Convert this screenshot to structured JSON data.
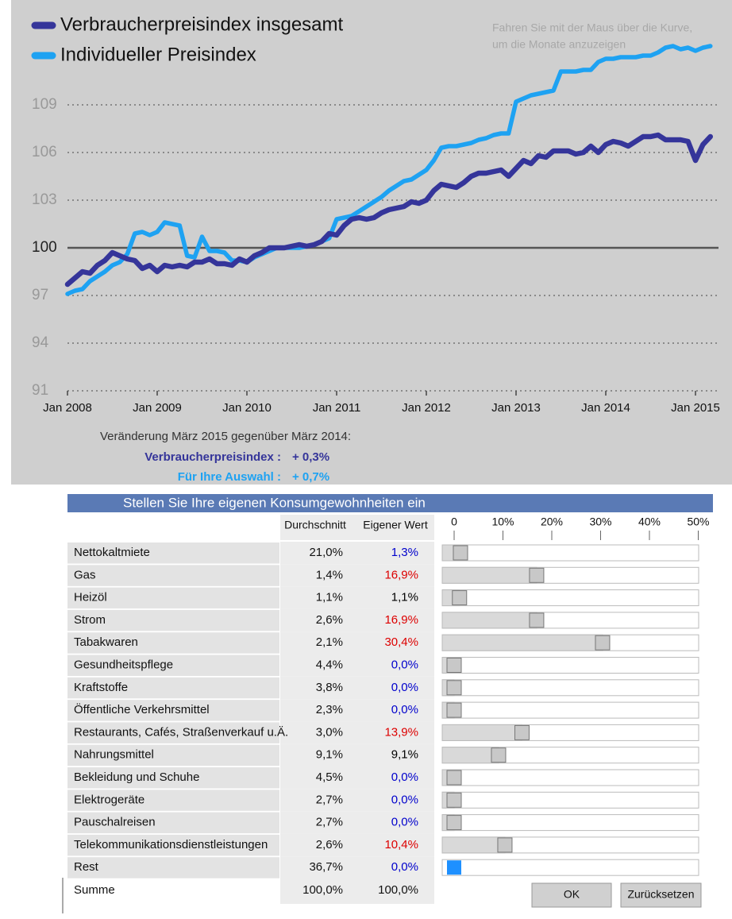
{
  "chart_data": {
    "type": "line",
    "categories": [
      "Jan 2008",
      null,
      null,
      null,
      null,
      null,
      null,
      null,
      null,
      null,
      null,
      null,
      "Jan 2009",
      null,
      null,
      null,
      null,
      null,
      null,
      null,
      null,
      null,
      null,
      null,
      "Jan 2010",
      null,
      null,
      null,
      null,
      null,
      null,
      null,
      null,
      null,
      null,
      null,
      "Jan 2011",
      null,
      null,
      null,
      null,
      null,
      null,
      null,
      null,
      null,
      null,
      null,
      "Jan 2012",
      null,
      null,
      null,
      null,
      null,
      null,
      null,
      null,
      null,
      null,
      null,
      "Jan 2013",
      null,
      null,
      null,
      null,
      null,
      null,
      null,
      null,
      null,
      null,
      null,
      "Jan 2014",
      null,
      null,
      null,
      null,
      null,
      null,
      null,
      null,
      null,
      null,
      null,
      "Jan 2015",
      null,
      null
    ],
    "series": [
      {
        "name": "Verbraucherpreisindex insgesamt",
        "color": "#35359a",
        "values": [
          97.7,
          98.1,
          98.5,
          98.4,
          98.9,
          99.2,
          99.7,
          99.5,
          99.3,
          99.2,
          98.7,
          98.9,
          98.5,
          98.9,
          98.8,
          98.9,
          98.8,
          99.1,
          99.1,
          99.3,
          99.0,
          99.0,
          98.9,
          99.3,
          99.1,
          99.5,
          99.7,
          100.0,
          100.0,
          100.0,
          100.1,
          100.2,
          100.1,
          100.2,
          100.4,
          100.9,
          100.8,
          101.4,
          101.8,
          101.9,
          101.8,
          101.9,
          102.2,
          102.4,
          102.5,
          102.6,
          102.9,
          102.8,
          103.0,
          103.6,
          104.0,
          103.9,
          103.8,
          104.1,
          104.5,
          104.7,
          104.7,
          104.8,
          104.9,
          104.5,
          105.0,
          105.5,
          105.3,
          105.8,
          105.7,
          106.1,
          106.1,
          106.1,
          105.9,
          106.0,
          106.4,
          106.0,
          106.5,
          106.7,
          106.6,
          106.4,
          106.7,
          107.0,
          107.0,
          107.1,
          106.8,
          106.8,
          106.8,
          106.7,
          105.5,
          106.5,
          107.0
        ]
      },
      {
        "name": "Individueller Preisindex",
        "color": "#1ea2f2",
        "values": [
          97.1,
          97.3,
          97.4,
          97.9,
          98.2,
          98.5,
          98.9,
          99.1,
          99.6,
          100.9,
          101.0,
          100.8,
          101.0,
          101.6,
          101.5,
          101.4,
          99.5,
          99.4,
          100.7,
          99.8,
          99.8,
          99.7,
          99.2,
          99.2,
          99.1,
          99.4,
          99.6,
          99.8,
          100.0,
          100.0,
          100.0,
          100.0,
          100.1,
          100.2,
          100.4,
          100.6,
          101.8,
          101.9,
          102.0,
          102.3,
          102.6,
          102.9,
          103.2,
          103.6,
          103.9,
          104.2,
          104.3,
          104.6,
          104.9,
          105.5,
          106.3,
          106.4,
          106.4,
          106.5,
          106.6,
          106.8,
          106.9,
          107.1,
          107.2,
          107.2,
          109.2,
          109.4,
          109.6,
          109.7,
          109.8,
          109.9,
          111.1,
          111.1,
          111.1,
          111.2,
          111.2,
          111.7,
          111.9,
          111.9,
          112.0,
          112.0,
          112.0,
          112.1,
          112.1,
          112.3,
          112.6,
          112.7,
          112.5,
          112.6,
          112.4,
          112.6,
          112.7
        ]
      }
    ],
    "ylim": [
      91,
      113.5
    ],
    "yticks": [
      91,
      94,
      97,
      100,
      103,
      106,
      109
    ],
    "baseline": 100,
    "grid": true,
    "legend": "top-left",
    "hover_hint": [
      "Fahren Sie mit der Maus über die Kurve,",
      "um die Monate anzuzeigen"
    ]
  },
  "change_summary": {
    "heading": "Veränderung März 2015 gegenüber März 2014:",
    "rows": [
      {
        "label": "Verbraucherpreisindex :",
        "value": "+ 0,3%"
      },
      {
        "label": "Für Ihre Auswahl :",
        "value": "+ 0,7%"
      }
    ]
  },
  "consumption": {
    "title": "Stellen Sie Ihre eigenen Konsumgewohnheiten ein",
    "columns": [
      "Durchschnitt",
      "Eigener Wert"
    ],
    "scale": {
      "xlim": [
        0,
        50
      ],
      "ticks": [
        0,
        {
          "value": 10,
          "label": "10%"
        },
        {
          "value": 20,
          "label": "20%"
        },
        {
          "value": 30,
          "label": "30%"
        },
        {
          "value": 40,
          "label": "40%"
        },
        {
          "value": 50,
          "label": "50%"
        }
      ]
    },
    "rows": [
      {
        "name": "Nettokaltmiete",
        "average": "21,0%",
        "own": {
          "value": 1.3,
          "label": "1,3%"
        },
        "color": "#0000cc"
      },
      {
        "name": "Gas",
        "average": "1,4%",
        "own": {
          "value": 16.9,
          "label": "16,9%"
        },
        "color": "#dd0000"
      },
      {
        "name": "Heizöl",
        "average": "1,1%",
        "own": {
          "value": 1.1,
          "label": "1,1%"
        },
        "color": "#000000"
      },
      {
        "name": "Strom",
        "average": "2,6%",
        "own": {
          "value": 16.9,
          "label": "16,9%"
        },
        "color": "#dd0000"
      },
      {
        "name": "Tabakwaren",
        "average": "2,1%",
        "own": {
          "value": 30.4,
          "label": "30,4%"
        },
        "color": "#dd0000"
      },
      {
        "name": "Gesundheitspflege",
        "average": "4,4%",
        "own": {
          "value": 0,
          "label": "0,0%"
        },
        "color": "#0000cc"
      },
      {
        "name": "Kraftstoffe",
        "average": "3,8%",
        "own": {
          "value": 0,
          "label": "0,0%"
        },
        "color": "#0000cc"
      },
      {
        "name": "Öffentliche Verkehrsmittel",
        "average": "2,3%",
        "own": {
          "value": 0,
          "label": "0,0%"
        },
        "color": "#0000cc"
      },
      {
        "name": "Restaurants, Cafés, Straßenverkauf u.Ä.",
        "average": "3,0%",
        "own": {
          "value": 13.9,
          "label": "13,9%"
        },
        "color": "#dd0000"
      },
      {
        "name": "Nahrungsmittel",
        "average": "9,1%",
        "own": {
          "value": 9.1,
          "label": "9,1%"
        },
        "color": "#000000"
      },
      {
        "name": "Bekleidung und Schuhe",
        "average": "4,5%",
        "own": {
          "value": 0,
          "label": "0,0%"
        },
        "color": "#0000cc"
      },
      {
        "name": "Elektrogeräte",
        "average": "2,7%",
        "own": {
          "value": 0,
          "label": "0,0%"
        },
        "color": "#0000cc"
      },
      {
        "name": "Pauschalreisen",
        "average": "2,7%",
        "own": {
          "value": 0,
          "label": "0,0%"
        },
        "color": "#0000cc"
      },
      {
        "name": "Telekommunikationsdienstleistungen",
        "average": "2,6%",
        "own": {
          "value": 10.4,
          "label": "10,4%"
        },
        "color": "#dd0000"
      },
      {
        "name": "Rest",
        "average": "36,7%",
        "own": {
          "value": 0,
          "label": "0,0%"
        },
        "color": "#0000cc",
        "handle_color": "#1e90ff"
      }
    ],
    "total": {
      "name": "Summe",
      "average": "100,0%",
      "own": "100,0%"
    },
    "buttons": [
      "OK",
      "Zurücksetzen"
    ]
  }
}
